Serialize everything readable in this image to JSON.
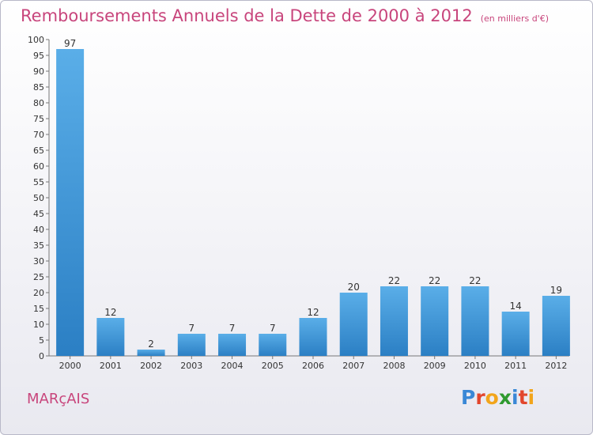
{
  "header": {
    "title": "Remboursements Annuels de la Dette de 2000 à 2012",
    "unit": "(en milliers d'€)"
  },
  "footer": {
    "city": "MARçAIS",
    "brand": "Proxiti"
  },
  "colors": {
    "title": "#c8457c",
    "bar_top": "#5aaee8",
    "bar_bottom": "#2b7fc4",
    "brand_letters": [
      "#3a88d6",
      "#e2462d",
      "#f2a51b",
      "#2f9a2f",
      "#3a88d6",
      "#e2462d",
      "#f2a51b"
    ]
  },
  "chart_data": {
    "type": "bar",
    "title": "Remboursements Annuels de la Dette de 2000 à 2012",
    "xlabel": "",
    "ylabel": "",
    "categories": [
      "2000",
      "2001",
      "2002",
      "2003",
      "2004",
      "2005",
      "2006",
      "2007",
      "2008",
      "2009",
      "2010",
      "2011",
      "2012"
    ],
    "values": [
      97,
      12,
      2,
      7,
      7,
      7,
      12,
      20,
      22,
      22,
      22,
      14,
      19
    ],
    "ylim": [
      0,
      100
    ],
    "yticks": [
      0,
      5,
      10,
      15,
      20,
      25,
      30,
      35,
      40,
      45,
      50,
      55,
      60,
      65,
      70,
      75,
      80,
      85,
      90,
      95,
      100
    ],
    "grid": false,
    "data_labels": true
  }
}
